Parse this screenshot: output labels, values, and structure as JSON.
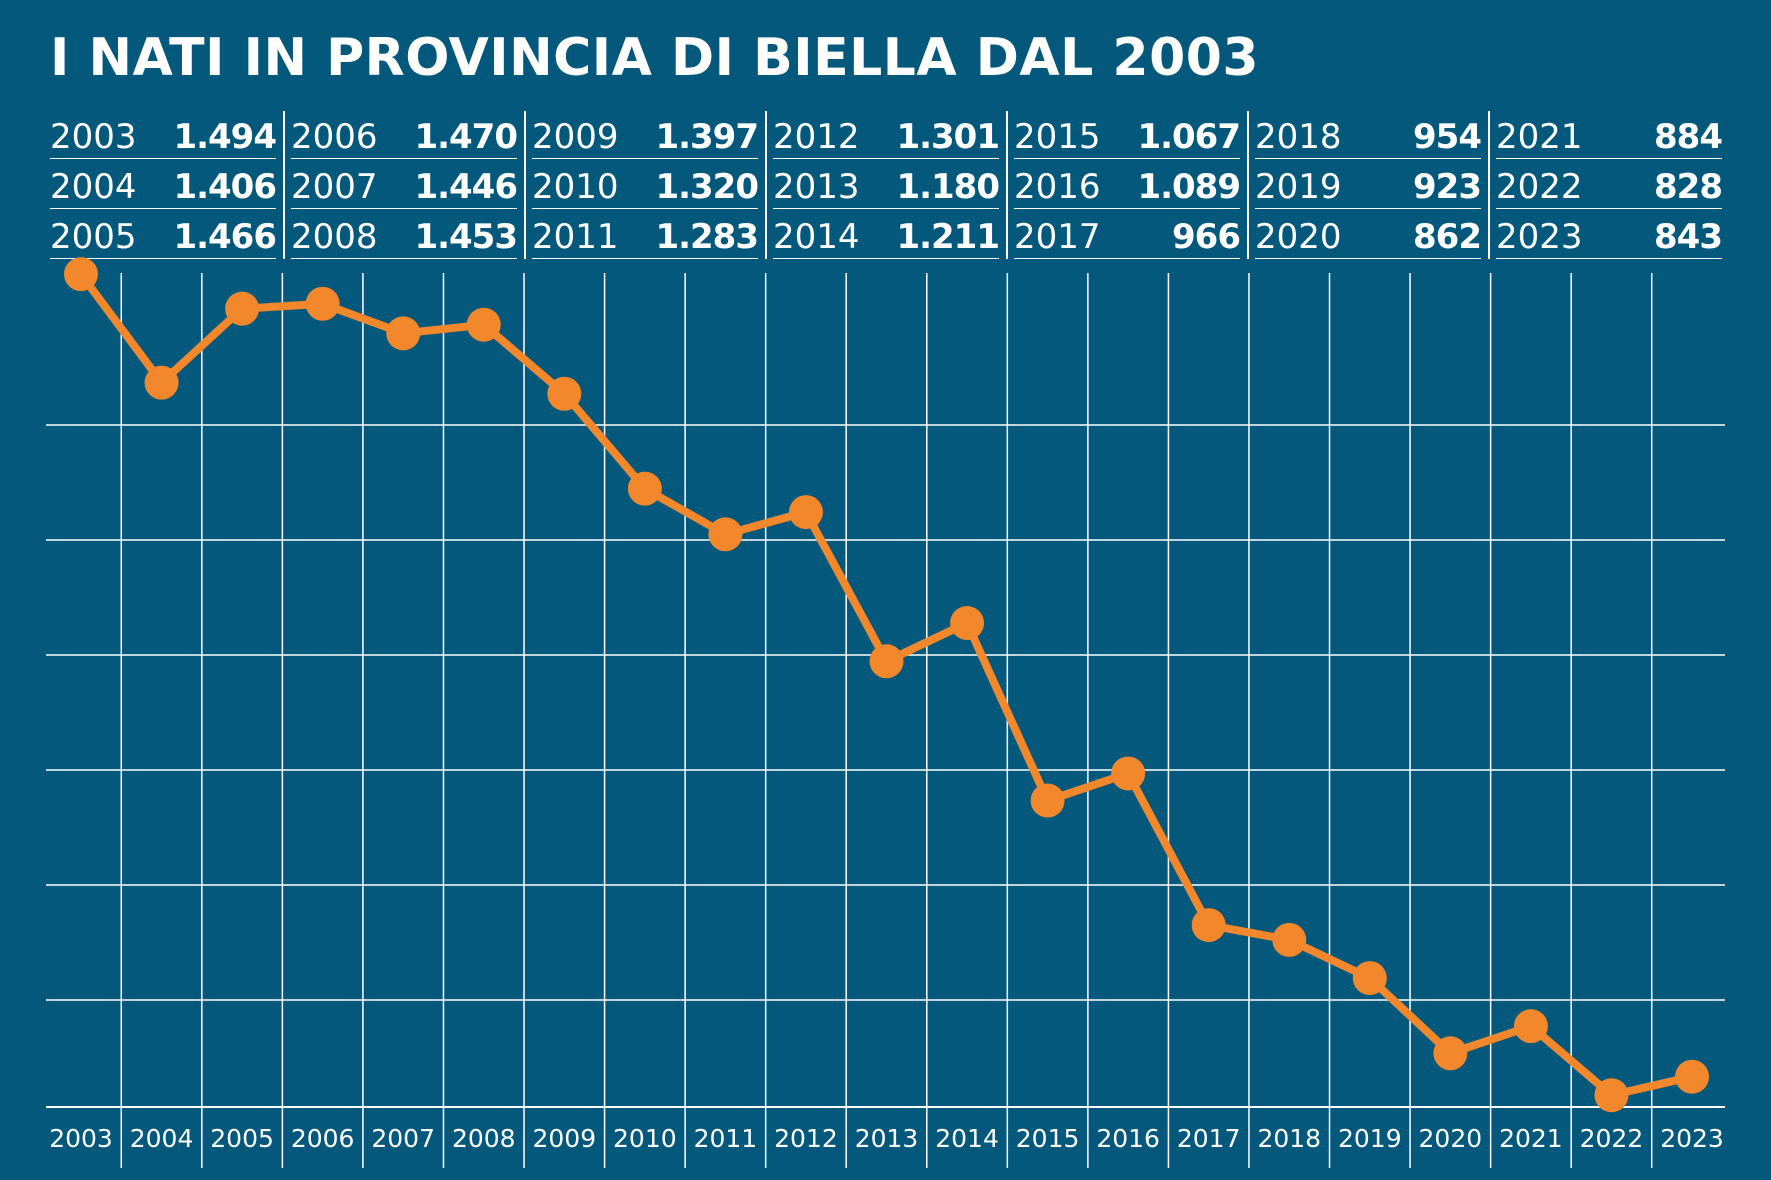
{
  "title": "I NATI IN PROVINCIA DI BIELLA DAL 2003",
  "colors": {
    "background": "#03587c",
    "grid": "#ffffff",
    "line": "#f3872b",
    "text": "#ffffff"
  },
  "table": {
    "columns": [
      [
        {
          "year": "2003",
          "value": "1.494"
        },
        {
          "year": "2004",
          "value": "1.406"
        },
        {
          "year": "2005",
          "value": "1.466"
        }
      ],
      [
        {
          "year": "2006",
          "value": "1.470"
        },
        {
          "year": "2007",
          "value": "1.446"
        },
        {
          "year": "2008",
          "value": "1.453"
        }
      ],
      [
        {
          "year": "2009",
          "value": "1.397"
        },
        {
          "year": "2010",
          "value": "1.320"
        },
        {
          "year": "2011",
          "value": "1.283"
        }
      ],
      [
        {
          "year": "2012",
          "value": "1.301"
        },
        {
          "year": "2013",
          "value": "1.180"
        },
        {
          "year": "2014",
          "value": "1.211"
        }
      ],
      [
        {
          "year": "2015",
          "value": "1.067"
        },
        {
          "year": "2016",
          "value": "1.089"
        },
        {
          "year": "2017",
          "value": "966"
        }
      ],
      [
        {
          "year": "2018",
          "value": "954"
        },
        {
          "year": "2019",
          "value": "923"
        },
        {
          "year": "2020",
          "value": "862"
        }
      ],
      [
        {
          "year": "2021",
          "value": "884"
        },
        {
          "year": "2022",
          "value": "828"
        },
        {
          "year": "2023",
          "value": "843"
        }
      ]
    ]
  },
  "chart_data": {
    "type": "line",
    "x": [
      "2003",
      "2004",
      "2005",
      "2006",
      "2007",
      "2008",
      "2009",
      "2010",
      "2011",
      "2012",
      "2013",
      "2014",
      "2015",
      "2016",
      "2017",
      "2018",
      "2019",
      "2020",
      "2021",
      "2022",
      "2023"
    ],
    "series": [
      {
        "values": [
          1494,
          1406,
          1466,
          1470,
          1446,
          1453,
          1397,
          1320,
          1283,
          1301,
          1180,
          1211,
          1067,
          1089,
          966,
          954,
          923,
          862,
          884,
          828,
          843
        ]
      }
    ],
    "grid": true,
    "markers": true
  }
}
